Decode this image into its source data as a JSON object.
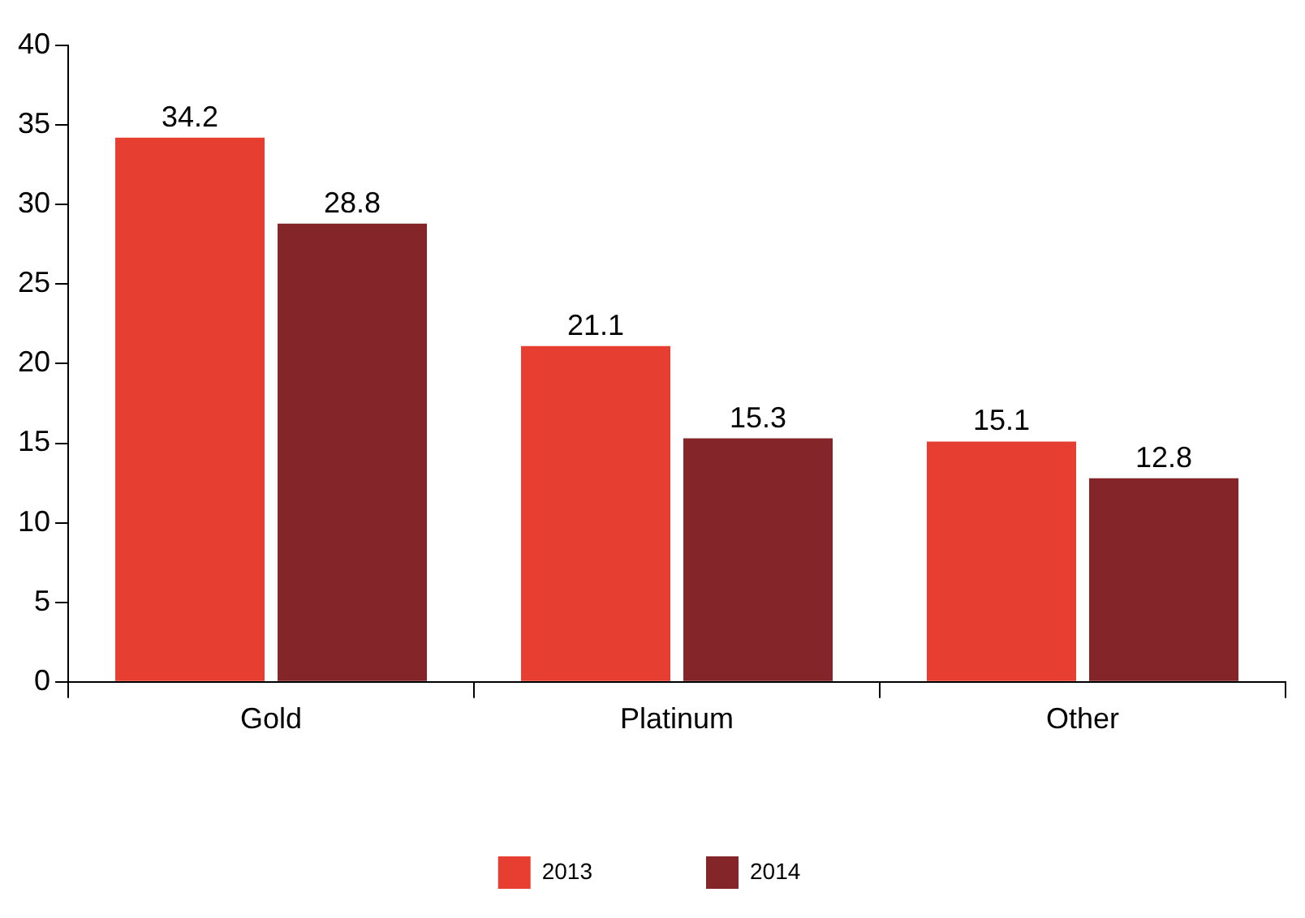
{
  "chart_data": {
    "type": "bar",
    "categories": [
      "Gold",
      "Platinum",
      "Other"
    ],
    "series": [
      {
        "name": "2013",
        "color": "#e63e30",
        "values": [
          34.2,
          21.1,
          15.1
        ]
      },
      {
        "name": "2014",
        "color": "#84252a",
        "values": [
          28.8,
          15.3,
          12.8
        ]
      }
    ],
    "ylim": [
      0,
      40
    ],
    "yticks": [
      0,
      5,
      10,
      15,
      20,
      25,
      30,
      35,
      40
    ],
    "grid": false,
    "legend": "bottom",
    "data_labels": true
  }
}
